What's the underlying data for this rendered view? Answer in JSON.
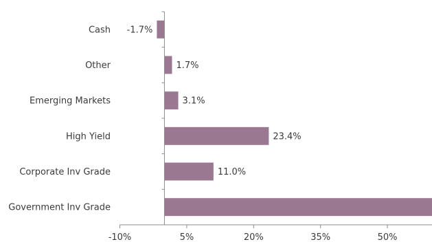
{
  "chart_data": {
    "type": "bar",
    "orientation": "horizontal",
    "title": "",
    "xlabel": "",
    "ylabel": "",
    "categories": [
      "Cash",
      "Other",
      "Emerging Markets",
      "High Yield",
      "Corporate Inv Grade",
      "Government Inv Grade"
    ],
    "values": [
      -1.7,
      1.7,
      3.1,
      23.4,
      11.0,
      60.0
    ],
    "data_labels": [
      "-1.7%",
      "1.7%",
      "3.1%",
      "23.4%",
      "11.0%",
      ""
    ],
    "xlim": [
      -10,
      60
    ],
    "xticks": [
      -10,
      5,
      20,
      35,
      50
    ],
    "xtick_labels": [
      "-10%",
      "5%",
      "20%",
      "35%",
      "50%"
    ],
    "grid": false,
    "legend": "none",
    "bar_color": "#9b7891",
    "axis_color": "#8c8c8c",
    "text_color": "#3a3a3a"
  }
}
